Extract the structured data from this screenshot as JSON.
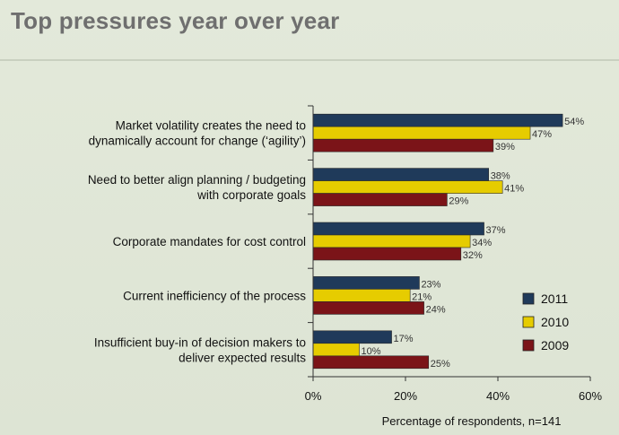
{
  "slide": {
    "title": "Top pressures year over year"
  },
  "chart_data": {
    "type": "bar",
    "orientation": "horizontal",
    "title": "Top pressures year over year",
    "xlabel": "Percentage of respondents, n=141",
    "ylabel": "",
    "xlim": [
      0,
      60
    ],
    "xticks": [
      0,
      20,
      40,
      60
    ],
    "xtick_labels": [
      "0%",
      "20%",
      "40%",
      "60%"
    ],
    "categories": [
      [
        "Market volatility creates the need to",
        "dynamically account for change (‘agility’)"
      ],
      [
        "Need to better align planning / budgeting",
        "with corporate goals"
      ],
      [
        "Corporate mandates for cost control"
      ],
      [
        "Current inefficiency of the process"
      ],
      [
        "Insufficient buy-in of decision makers to",
        "deliver expected results"
      ]
    ],
    "series": [
      {
        "name": "2011",
        "color": "#1f3a5a",
        "values": [
          54,
          38,
          37,
          23,
          17
        ]
      },
      {
        "name": "2010",
        "color": "#e6cc00",
        "values": [
          47,
          41,
          34,
          21,
          10
        ]
      },
      {
        "name": "2009",
        "color": "#7b1418",
        "values": [
          39,
          29,
          32,
          24,
          25
        ]
      }
    ],
    "legend": {
      "position": "bottom-right",
      "entries": [
        "2011",
        "2010",
        "2009"
      ]
    },
    "grid": false
  }
}
